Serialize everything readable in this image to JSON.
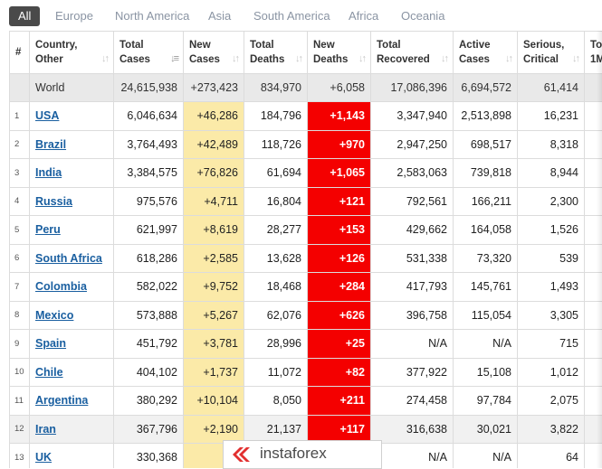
{
  "tabs": [
    "All",
    "Europe",
    "North America",
    "Asia",
    "South America",
    "Africa",
    "Oceania"
  ],
  "headers": {
    "num": "#",
    "country": [
      "Country,",
      "Other"
    ],
    "total_cases": [
      "Total",
      "Cases"
    ],
    "new_cases": [
      "New",
      "Cases"
    ],
    "total_deaths": [
      "Total",
      "Deaths"
    ],
    "new_deaths": [
      "New",
      "Deaths"
    ],
    "total_recovered": [
      "Total",
      "Recovered"
    ],
    "active_cases": [
      "Active",
      "Cases"
    ],
    "serious_critical": [
      "Serious,",
      "Critical"
    ],
    "tot_per_1m": [
      "To",
      "1M"
    ]
  },
  "world": {
    "country": "World",
    "total_cases": "24,615,938",
    "new_cases": "+273,423",
    "total_deaths": "834,970",
    "new_deaths": "+6,058",
    "total_recovered": "17,086,396",
    "active_cases": "6,694,572",
    "serious_critical": "61,414"
  },
  "rows": [
    {
      "num": "1",
      "country": "USA",
      "total_cases": "6,046,634",
      "new_cases": "+46,286",
      "total_deaths": "184,796",
      "new_deaths": "+1,143",
      "total_recovered": "3,347,940",
      "active_cases": "2,513,898",
      "serious_critical": "16,231"
    },
    {
      "num": "2",
      "country": "Brazil",
      "total_cases": "3,764,493",
      "new_cases": "+42,489",
      "total_deaths": "118,726",
      "new_deaths": "+970",
      "total_recovered": "2,947,250",
      "active_cases": "698,517",
      "serious_critical": "8,318"
    },
    {
      "num": "3",
      "country": "India",
      "total_cases": "3,384,575",
      "new_cases": "+76,826",
      "total_deaths": "61,694",
      "new_deaths": "+1,065",
      "total_recovered": "2,583,063",
      "active_cases": "739,818",
      "serious_critical": "8,944"
    },
    {
      "num": "4",
      "country": "Russia",
      "total_cases": "975,576",
      "new_cases": "+4,711",
      "total_deaths": "16,804",
      "new_deaths": "+121",
      "total_recovered": "792,561",
      "active_cases": "166,211",
      "serious_critical": "2,300"
    },
    {
      "num": "5",
      "country": "Peru",
      "total_cases": "621,997",
      "new_cases": "+8,619",
      "total_deaths": "28,277",
      "new_deaths": "+153",
      "total_recovered": "429,662",
      "active_cases": "164,058",
      "serious_critical": "1,526"
    },
    {
      "num": "6",
      "country": "South Africa",
      "total_cases": "618,286",
      "new_cases": "+2,585",
      "total_deaths": "13,628",
      "new_deaths": "+126",
      "total_recovered": "531,338",
      "active_cases": "73,320",
      "serious_critical": "539"
    },
    {
      "num": "7",
      "country": "Colombia",
      "total_cases": "582,022",
      "new_cases": "+9,752",
      "total_deaths": "18,468",
      "new_deaths": "+284",
      "total_recovered": "417,793",
      "active_cases": "145,761",
      "serious_critical": "1,493"
    },
    {
      "num": "8",
      "country": "Mexico",
      "total_cases": "573,888",
      "new_cases": "+5,267",
      "total_deaths": "62,076",
      "new_deaths": "+626",
      "total_recovered": "396,758",
      "active_cases": "115,054",
      "serious_critical": "3,305"
    },
    {
      "num": "9",
      "country": "Spain",
      "total_cases": "451,792",
      "new_cases": "+3,781",
      "total_deaths": "28,996",
      "new_deaths": "+25",
      "total_recovered": "N/A",
      "active_cases": "N/A",
      "serious_critical": "715"
    },
    {
      "num": "10",
      "country": "Chile",
      "total_cases": "404,102",
      "new_cases": "+1,737",
      "total_deaths": "11,072",
      "new_deaths": "+82",
      "total_recovered": "377,922",
      "active_cases": "15,108",
      "serious_critical": "1,012"
    },
    {
      "num": "11",
      "country": "Argentina",
      "total_cases": "380,292",
      "new_cases": "+10,104",
      "total_deaths": "8,050",
      "new_deaths": "+211",
      "total_recovered": "274,458",
      "active_cases": "97,784",
      "serious_critical": "2,075"
    },
    {
      "num": "12",
      "country": "Iran",
      "total_cases": "367,796",
      "new_cases": "+2,190",
      "total_deaths": "21,137",
      "new_deaths": "+117",
      "total_recovered": "316,638",
      "active_cases": "30,021",
      "serious_critical": "3,822"
    },
    {
      "num": "13",
      "country": "UK",
      "total_cases": "330,368",
      "new_cases": "+1",
      "total_deaths": "",
      "new_deaths": "",
      "total_recovered": "N/A",
      "active_cases": "N/A",
      "serious_critical": "64"
    }
  ],
  "watermark": "instaforex",
  "colors": {
    "new_cases_bg": "#fbeaa8",
    "new_deaths_bg": "#f40000",
    "link": "#1a5fa0",
    "active_tab": "#4a4a4a"
  }
}
